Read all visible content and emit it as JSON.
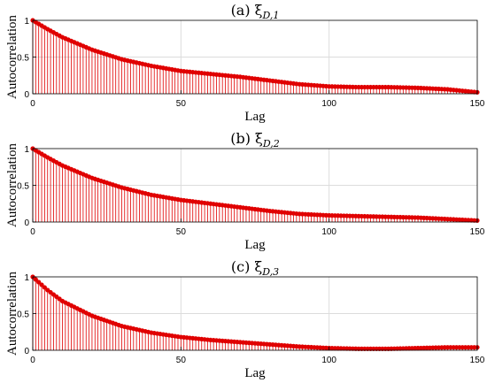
{
  "colors": {
    "stem": "#e00000",
    "grid": "#dcdcdc",
    "axis": "#000000"
  },
  "chart_data": [
    {
      "type": "stem",
      "title": "(a) ξ_{D,1}",
      "title_main": "(a) ξ",
      "title_sub": "D,1",
      "xlabel": "Lag",
      "ylabel": "Autocorrelation",
      "xlim": [
        0,
        150
      ],
      "ylim": [
        0,
        1
      ],
      "xticks": [
        0,
        50,
        100,
        150
      ],
      "yticks": [
        0,
        0.5,
        1
      ],
      "grid": true,
      "keypoints": [
        [
          0,
          1.0
        ],
        [
          5,
          0.88
        ],
        [
          10,
          0.77
        ],
        [
          20,
          0.6
        ],
        [
          30,
          0.47
        ],
        [
          40,
          0.38
        ],
        [
          50,
          0.31
        ],
        [
          60,
          0.27
        ],
        [
          70,
          0.23
        ],
        [
          80,
          0.18
        ],
        [
          90,
          0.13
        ],
        [
          100,
          0.1
        ],
        [
          110,
          0.09
        ],
        [
          120,
          0.09
        ],
        [
          130,
          0.08
        ],
        [
          140,
          0.06
        ],
        [
          150,
          0.02
        ]
      ]
    },
    {
      "type": "stem",
      "title": "(b) ξ_{D,2}",
      "title_main": "(b) ξ",
      "title_sub": "D,2",
      "xlabel": "Lag",
      "ylabel": "Autocorrelation",
      "xlim": [
        0,
        150
      ],
      "ylim": [
        0,
        1
      ],
      "xticks": [
        0,
        50,
        100,
        150
      ],
      "yticks": [
        0,
        0.5,
        1
      ],
      "grid": true,
      "keypoints": [
        [
          0,
          1.0
        ],
        [
          5,
          0.88
        ],
        [
          10,
          0.77
        ],
        [
          20,
          0.6
        ],
        [
          30,
          0.47
        ],
        [
          40,
          0.37
        ],
        [
          50,
          0.3
        ],
        [
          60,
          0.25
        ],
        [
          70,
          0.2
        ],
        [
          80,
          0.15
        ],
        [
          90,
          0.11
        ],
        [
          100,
          0.09
        ],
        [
          110,
          0.08
        ],
        [
          120,
          0.07
        ],
        [
          130,
          0.06
        ],
        [
          140,
          0.04
        ],
        [
          150,
          0.02
        ]
      ]
    },
    {
      "type": "stem",
      "title": "(c) ξ_{D,3}",
      "title_main": "(c) ξ",
      "title_sub": "D,3",
      "xlabel": "Lag",
      "ylabel": "Autocorrelation",
      "xlim": [
        0,
        150
      ],
      "ylim": [
        0,
        1
      ],
      "xticks": [
        0,
        50,
        100,
        150
      ],
      "yticks": [
        0,
        0.5,
        1
      ],
      "grid": true,
      "keypoints": [
        [
          0,
          1.0
        ],
        [
          5,
          0.82
        ],
        [
          10,
          0.67
        ],
        [
          20,
          0.47
        ],
        [
          30,
          0.33
        ],
        [
          40,
          0.24
        ],
        [
          50,
          0.18
        ],
        [
          60,
          0.14
        ],
        [
          70,
          0.11
        ],
        [
          80,
          0.08
        ],
        [
          90,
          0.05
        ],
        [
          100,
          0.03
        ],
        [
          110,
          0.02
        ],
        [
          120,
          0.02
        ],
        [
          130,
          0.03
        ],
        [
          140,
          0.04
        ],
        [
          150,
          0.04
        ]
      ]
    }
  ]
}
